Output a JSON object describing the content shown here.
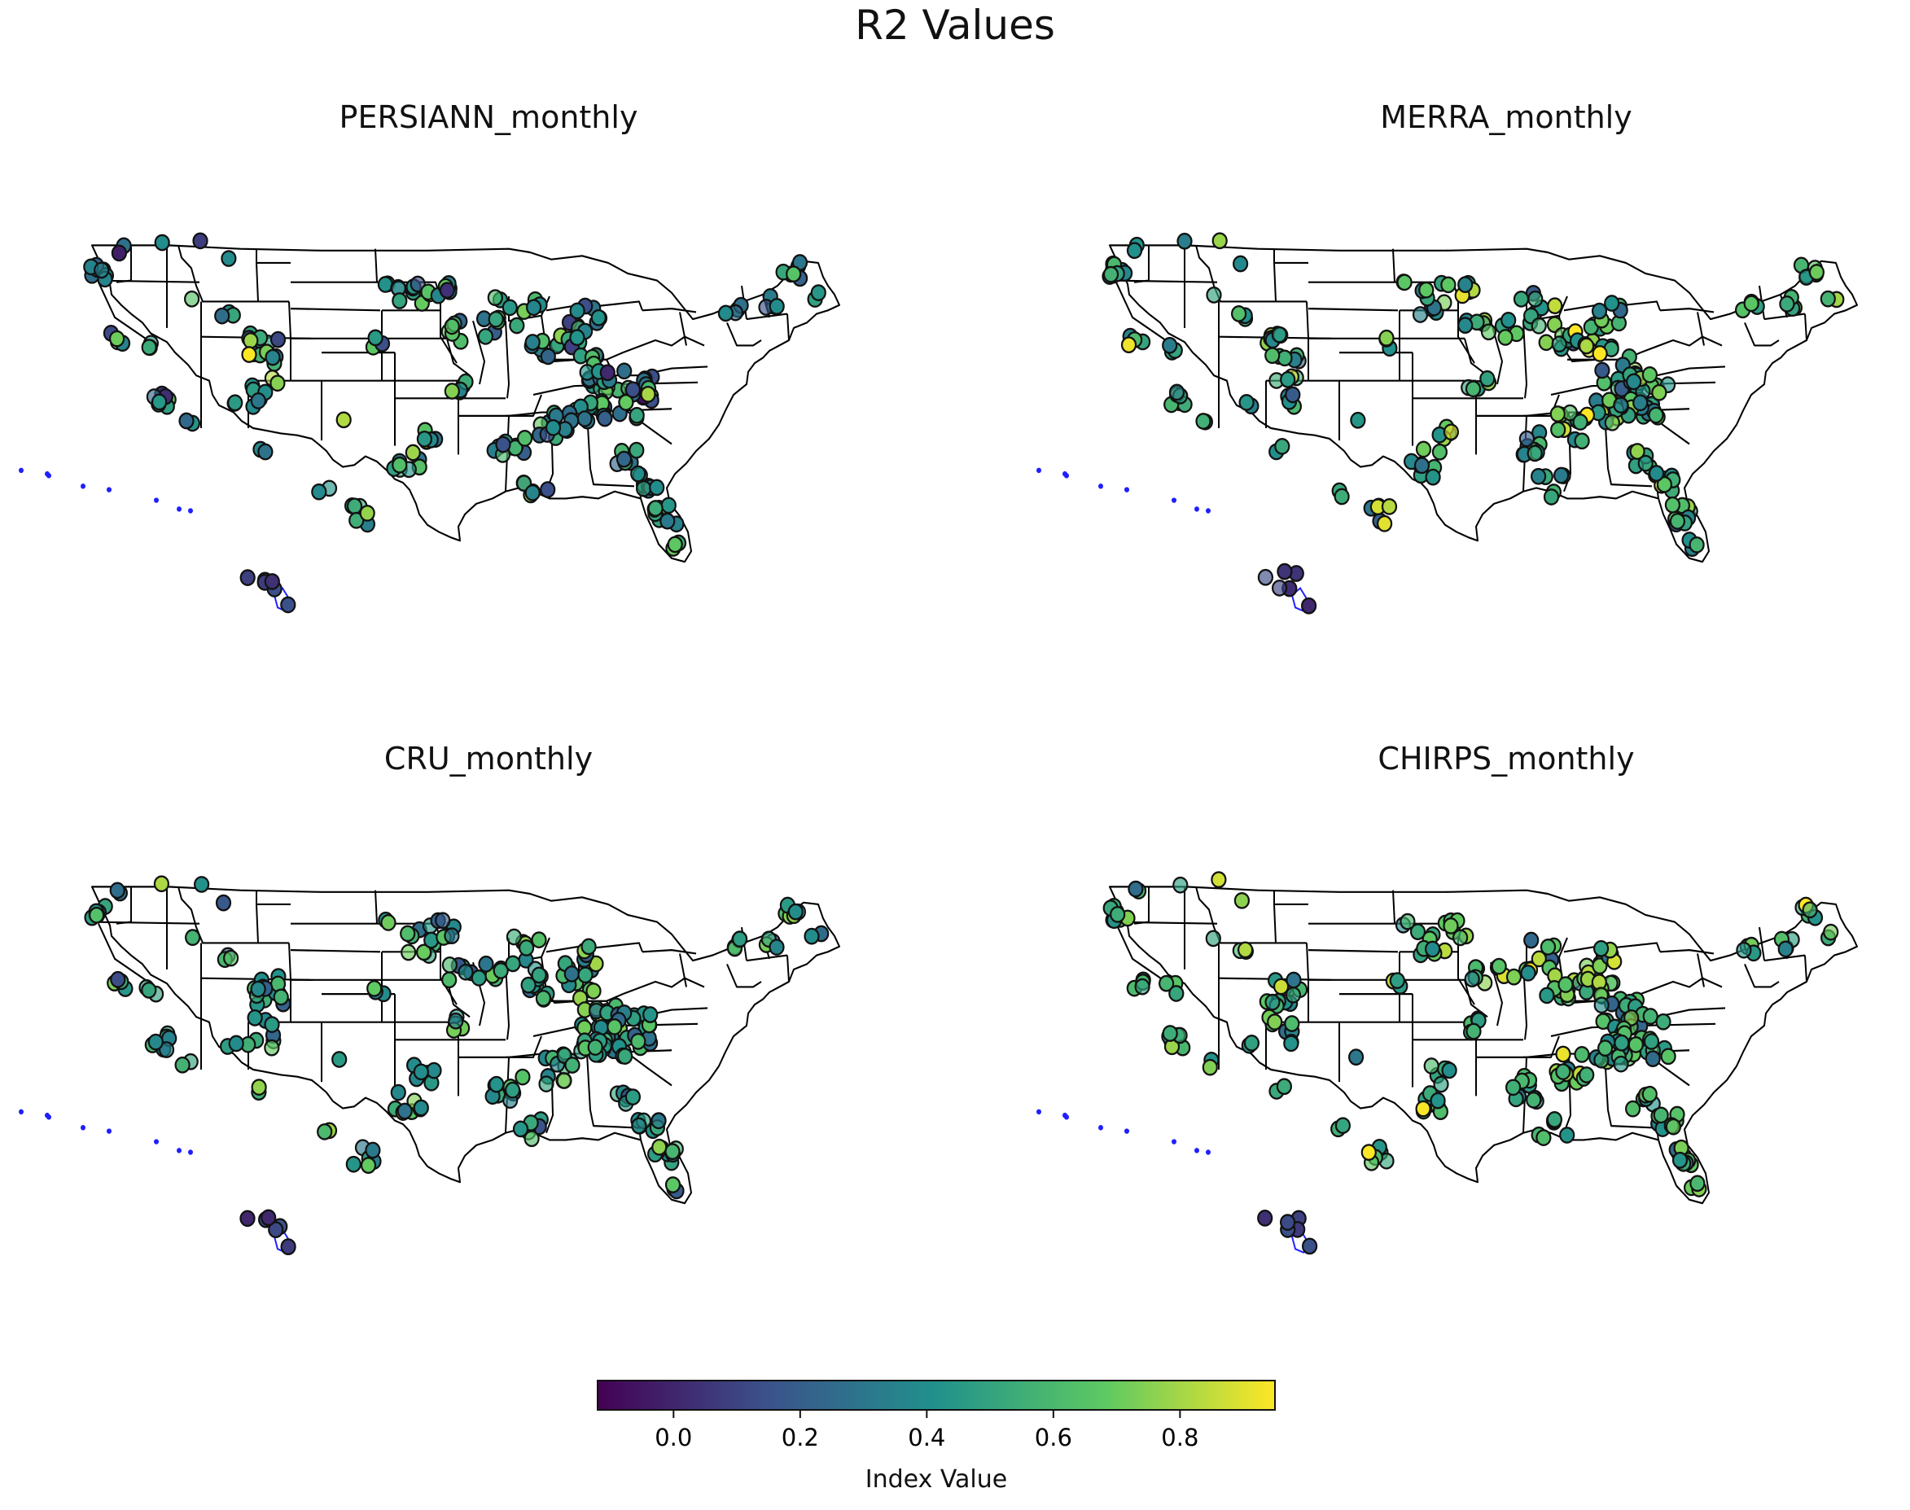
{
  "title": "R2 Values",
  "colormap": {
    "name": "viridis",
    "stops": [
      "#440154",
      "#3b528b",
      "#21918c",
      "#5ec962",
      "#fde725"
    ],
    "vmin": -0.12,
    "vmax": 0.95
  },
  "colorbar": {
    "label": "Index Value",
    "ticks": [
      "0.0",
      "0.2",
      "0.4",
      "0.6",
      "0.8"
    ],
    "tick_values": [
      0.0,
      0.2,
      0.4,
      0.6,
      0.8
    ]
  },
  "panels": [
    {
      "title": "PERSIANN_monthly",
      "mean_r2": 0.42,
      "spread": 0.24,
      "seed": 11
    },
    {
      "title": "MERRA_monthly",
      "mean_r2": 0.55,
      "spread": 0.22,
      "seed": 23
    },
    {
      "title": "CRU_monthly",
      "mean_r2": 0.48,
      "spread": 0.2,
      "seed": 37
    },
    {
      "title": "CHIRPS_monthly",
      "mean_r2": 0.57,
      "spread": 0.2,
      "seed": 51
    }
  ],
  "chart_data": {
    "type": "scatter",
    "title": "R2 Values",
    "subplots": [
      "PERSIANN_monthly",
      "MERRA_monthly",
      "CRU_monthly",
      "CHIRPS_monthly"
    ],
    "colorbar_label": "Index Value",
    "colorbar_range": [
      -0.12,
      0.95
    ],
    "colorbar_ticks": [
      0.0,
      0.2,
      0.4,
      0.6,
      0.8
    ],
    "note": "Gauge stations over the contiguous United States and Hawaii, colored by R2 index value."
  }
}
